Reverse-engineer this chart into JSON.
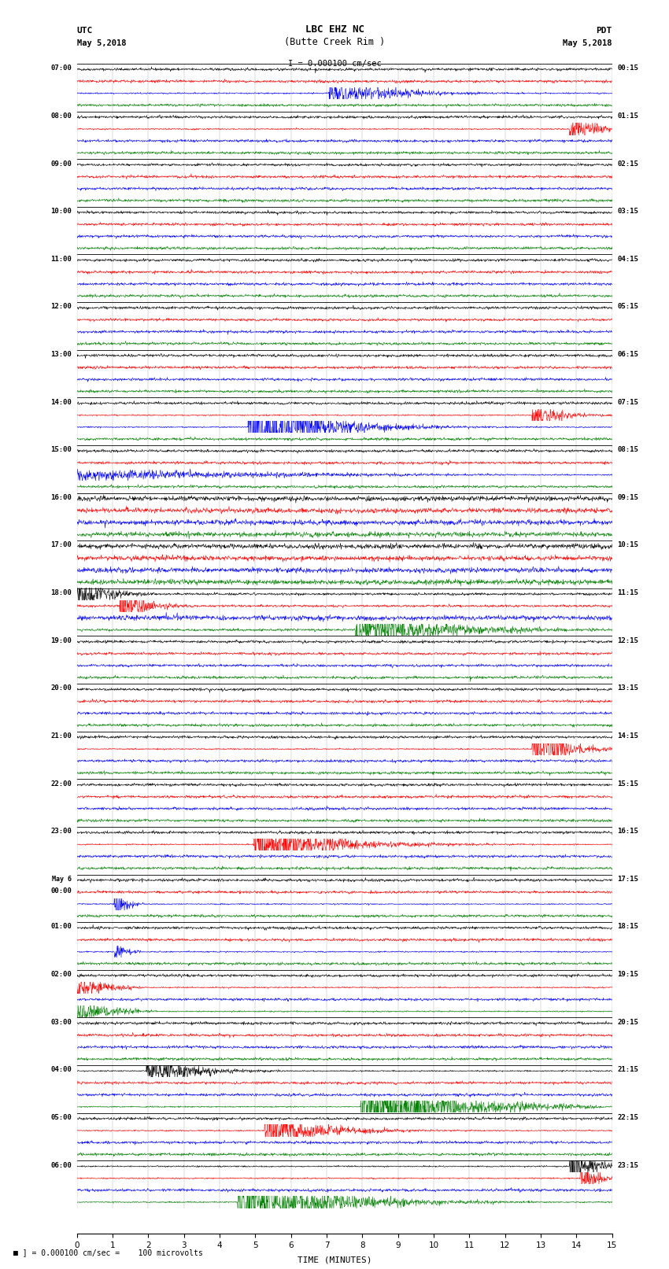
{
  "title_line1": "LBC EHZ NC",
  "title_line2": "(Butte Creek Rim )",
  "scale_label": "I = 0.000100 cm/sec",
  "utc_label": "UTC",
  "utc_date": "May 5,2018",
  "pdt_label": "PDT",
  "pdt_date": "May 5,2018",
  "xlabel": "TIME (MINUTES)",
  "bottom_note": "= 0.000100 cm/sec =    100 microvolts",
  "xmin": 0,
  "xmax": 15,
  "xticks": [
    0,
    1,
    2,
    3,
    4,
    5,
    6,
    7,
    8,
    9,
    10,
    11,
    12,
    13,
    14,
    15
  ],
  "left_times": [
    "07:00",
    "08:00",
    "09:00",
    "10:00",
    "11:00",
    "12:00",
    "13:00",
    "14:00",
    "15:00",
    "16:00",
    "17:00",
    "18:00",
    "19:00",
    "20:00",
    "21:00",
    "22:00",
    "23:00",
    "May 6\n00:00",
    "01:00",
    "02:00",
    "03:00",
    "04:00",
    "05:00",
    "06:00"
  ],
  "right_times": [
    "00:15",
    "01:15",
    "02:15",
    "03:15",
    "04:15",
    "05:15",
    "06:15",
    "07:15",
    "08:15",
    "09:15",
    "10:15",
    "11:15",
    "12:15",
    "13:15",
    "14:15",
    "15:15",
    "16:15",
    "17:15",
    "18:15",
    "19:15",
    "20:15",
    "21:15",
    "22:15",
    "23:15"
  ],
  "trace_colors": [
    "black",
    "red",
    "blue",
    "green"
  ],
  "n_rows": 24,
  "traces_per_row": 4,
  "background_color": "white",
  "grid_color": "#777777",
  "fig_width": 8.5,
  "fig_height": 16.13
}
